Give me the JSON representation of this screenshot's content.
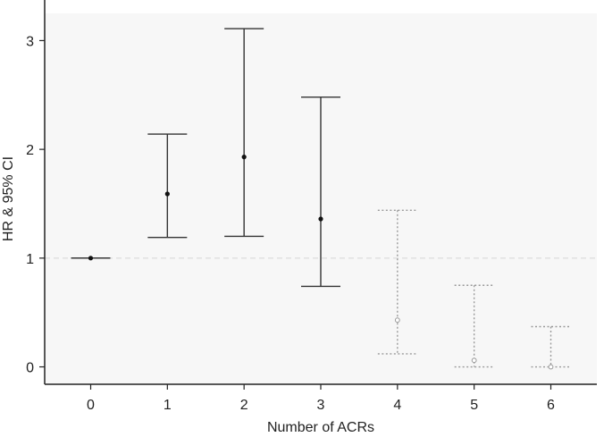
{
  "chart_data": {
    "type": "scatter",
    "title": "",
    "xlabel": "Number of ACRs",
    "ylabel": "HR & 95% CI",
    "x_ticks": [
      "0",
      "1",
      "2",
      "3",
      "4",
      "5",
      "6"
    ],
    "y_ticks": [
      "0",
      "1",
      "2",
      "3"
    ],
    "xlim": [
      -0.6,
      6.6
    ],
    "ylim": [
      -0.16,
      3.25
    ],
    "reference_line": 1,
    "grid": false,
    "points": [
      {
        "x": 0,
        "hr": 1.0,
        "lower": 1.0,
        "upper": 1.0,
        "style": "solid"
      },
      {
        "x": 1,
        "hr": 1.59,
        "lower": 1.19,
        "upper": 2.14,
        "style": "solid"
      },
      {
        "x": 2,
        "hr": 1.93,
        "lower": 1.2,
        "upper": 3.11,
        "style": "solid"
      },
      {
        "x": 3,
        "hr": 1.36,
        "lower": 0.74,
        "upper": 2.48,
        "style": "solid"
      },
      {
        "x": 4,
        "hr": 0.43,
        "lower": 0.12,
        "upper": 1.44,
        "style": "dotted"
      },
      {
        "x": 5,
        "hr": 0.06,
        "lower": 0.0,
        "upper": 0.75,
        "style": "dotted"
      },
      {
        "x": 6,
        "hr": 0.0,
        "lower": 0.0,
        "upper": 0.37,
        "style": "dotted"
      }
    ],
    "colors": {
      "solid": "#333333",
      "dotted": "#9a9a9a",
      "panel": "#f7f7f7",
      "reference": "#d6d6d6"
    }
  }
}
